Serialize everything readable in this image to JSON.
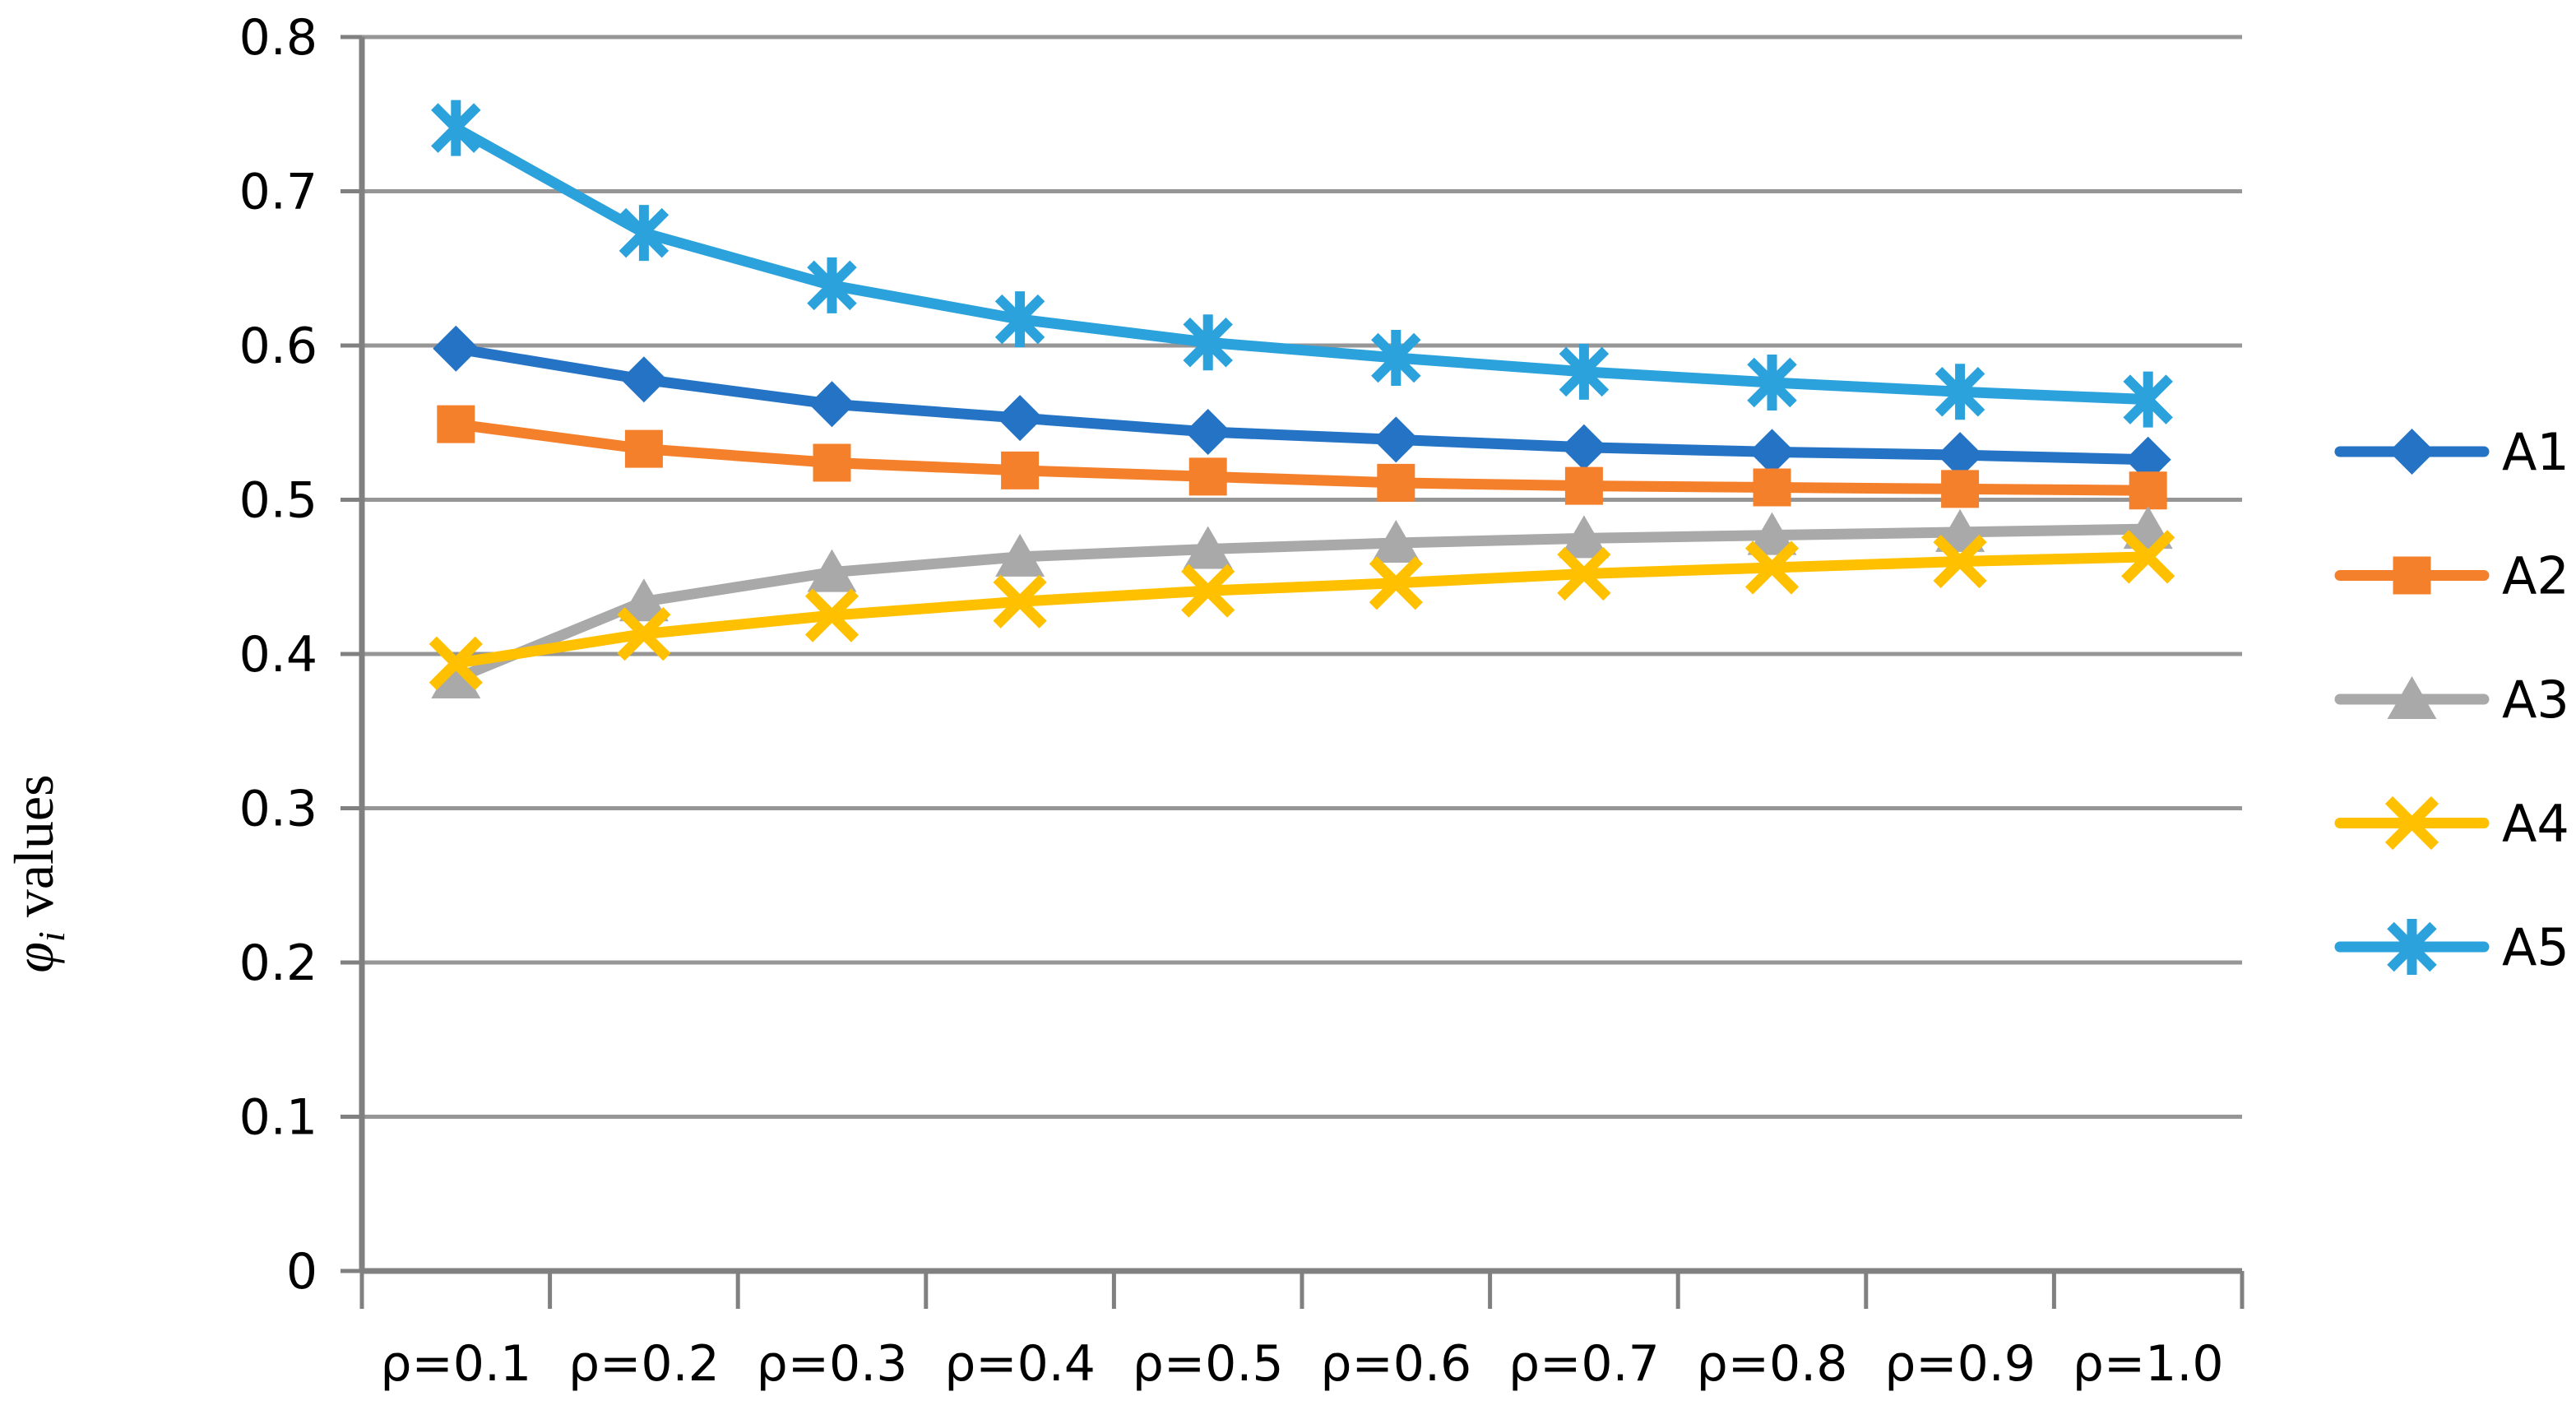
{
  "chart_data": {
    "type": "line",
    "title": "",
    "xlabel": "",
    "ylabel": {
      "phi": "φ",
      "sub": "i",
      "rest": " values"
    },
    "ylim": [
      0,
      0.8
    ],
    "y_tick_step": 0.1,
    "y_tick_labels": [
      "0",
      "0.1",
      "0.2",
      "0.3",
      "0.4",
      "0.5",
      "0.6",
      "0.7",
      "0.8"
    ],
    "categories": [
      "ρ=0.1",
      "ρ=0.2",
      "ρ=0.3",
      "ρ=0.4",
      "ρ=0.5",
      "ρ=0.6",
      "ρ=0.7",
      "ρ=0.8",
      "ρ=0.9",
      "ρ=1.0"
    ],
    "grid": "horizontal",
    "legend_position": "right",
    "series": [
      {
        "name": "A1",
        "marker": "diamond",
        "color": "#2573C5",
        "values": [
          0.598,
          0.578,
          0.562,
          0.553,
          0.544,
          0.539,
          0.534,
          0.531,
          0.529,
          0.526
        ]
      },
      {
        "name": "A2",
        "marker": "square",
        "color": "#F5802C",
        "values": [
          0.549,
          0.533,
          0.524,
          0.519,
          0.515,
          0.511,
          0.509,
          0.508,
          0.507,
          0.506
        ]
      },
      {
        "name": "A3",
        "marker": "triangle",
        "color": "#A9A9A9",
        "values": [
          0.384,
          0.434,
          0.453,
          0.463,
          0.468,
          0.472,
          0.475,
          0.477,
          0.479,
          0.481
        ]
      },
      {
        "name": "A4",
        "marker": "x",
        "color": "#FFC000",
        "values": [
          0.394,
          0.413,
          0.425,
          0.434,
          0.441,
          0.446,
          0.452,
          0.456,
          0.46,
          0.463
        ]
      },
      {
        "name": "A5",
        "marker": "asterisk",
        "color": "#2BA2DC",
        "values": [
          0.741,
          0.673,
          0.639,
          0.617,
          0.602,
          0.592,
          0.583,
          0.576,
          0.57,
          0.565
        ]
      }
    ],
    "colors": {
      "gridline": "#969696",
      "axis": "#808080",
      "text": "#000000",
      "background": "#FFFFFF"
    }
  }
}
